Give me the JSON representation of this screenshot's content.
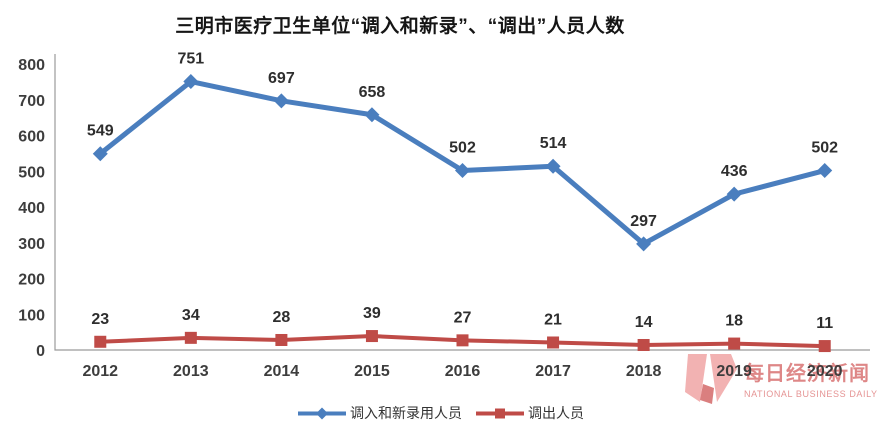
{
  "title": "三明市医疗卫生单位“调入和新录”、“调出”人员人数",
  "colors": {
    "series_in": "#4A7EBE",
    "series_out": "#BF4B47",
    "axis": "#9B9B9B",
    "tick_text": "#3D3D3D",
    "watermark_red": "#C93E3E",
    "watermark_pink": "#EF9F9F"
  },
  "chart_data": {
    "type": "line",
    "title": "三明市医疗卫生单位“调入和新录”、“调出”人员人数",
    "categories": [
      "2012",
      "2013",
      "2014",
      "2015",
      "2016",
      "2017",
      "2018",
      "2019",
      "2020"
    ],
    "series": [
      {
        "name": "调入和新录用人员",
        "values": [
          549,
          751,
          697,
          658,
          502,
          514,
          297,
          436,
          502
        ],
        "color": "#4A7EBE",
        "marker": "diamond"
      },
      {
        "name": "调出人员",
        "values": [
          23,
          34,
          28,
          39,
          27,
          21,
          14,
          18,
          11
        ],
        "color": "#BF4B47",
        "marker": "square"
      }
    ],
    "xlabel": "",
    "ylabel": "",
    "ylim": [
      0,
      800
    ],
    "yticks": [
      0,
      100,
      200,
      300,
      400,
      500,
      600,
      700,
      800
    ],
    "grid": false,
    "data_labels": true,
    "legend_position": "bottom"
  },
  "watermark": {
    "text": "每日经济新闻",
    "subtext": "NATIONAL BUSINESS DAILY"
  }
}
